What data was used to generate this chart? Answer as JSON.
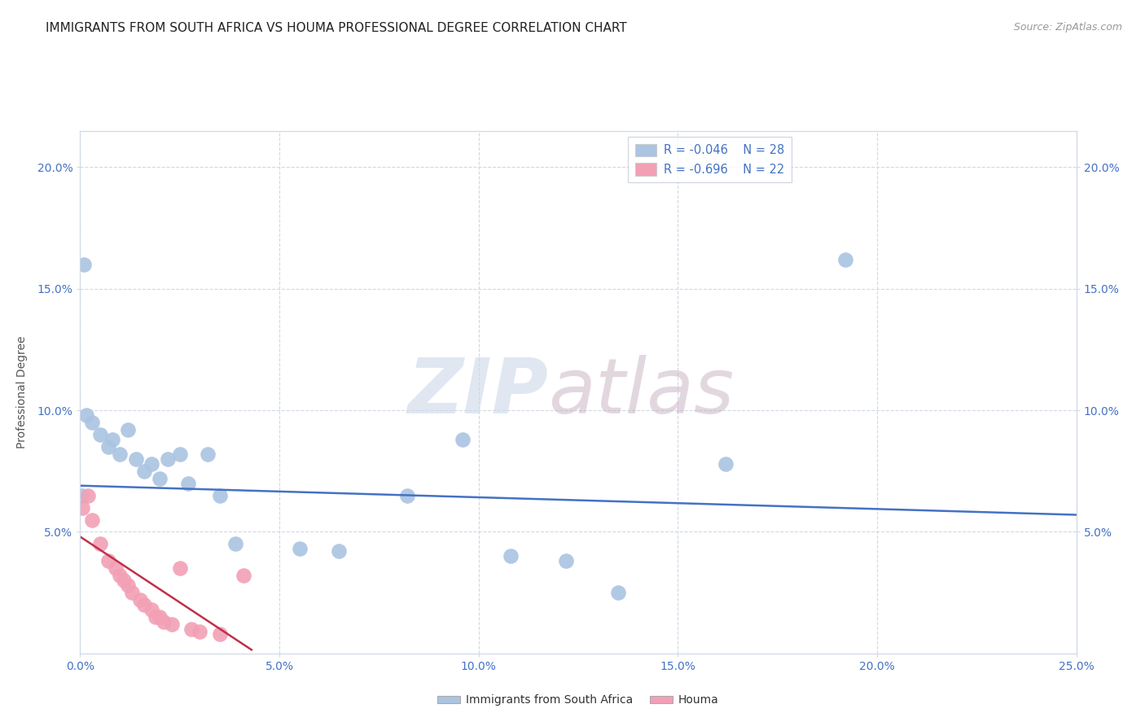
{
  "title": "IMMIGRANTS FROM SOUTH AFRICA VS HOUMA PROFESSIONAL DEGREE CORRELATION CHART",
  "source": "Source: ZipAtlas.com",
  "xlabel_vals": [
    0.0,
    5.0,
    10.0,
    15.0,
    20.0,
    25.0
  ],
  "ylabel": "Professional Degree",
  "ylabel_vals": [
    5.0,
    10.0,
    15.0,
    20.0
  ],
  "xlim": [
    0,
    25
  ],
  "ylim": [
    0,
    21.5
  ],
  "legend_blue_r": "R = -0.046",
  "legend_blue_n": "N = 28",
  "legend_pink_r": "R = -0.696",
  "legend_pink_n": "N = 22",
  "blue_scatter_x": [
    0.15,
    0.3,
    0.5,
    0.7,
    0.8,
    1.0,
    1.2,
    1.4,
    1.6,
    1.8,
    2.0,
    2.2,
    2.5,
    2.7,
    3.2,
    3.5,
    3.9,
    5.5,
    6.5,
    8.2,
    9.6,
    10.8,
    12.2,
    13.5,
    16.2,
    19.2,
    0.05,
    0.1
  ],
  "blue_scatter_y": [
    9.8,
    9.5,
    9.0,
    8.5,
    8.8,
    8.2,
    9.2,
    8.0,
    7.5,
    7.8,
    7.2,
    8.0,
    8.2,
    7.0,
    8.2,
    6.5,
    4.5,
    4.3,
    4.2,
    6.5,
    8.8,
    4.0,
    3.8,
    2.5,
    7.8,
    16.2,
    6.5,
    16.0
  ],
  "pink_scatter_x": [
    0.05,
    0.2,
    0.3,
    0.5,
    0.7,
    0.9,
    1.0,
    1.1,
    1.2,
    1.3,
    1.5,
    1.6,
    1.8,
    1.9,
    2.0,
    2.1,
    2.3,
    2.5,
    2.8,
    3.0,
    3.5,
    4.1
  ],
  "pink_scatter_y": [
    6.0,
    6.5,
    5.5,
    4.5,
    3.8,
    3.5,
    3.2,
    3.0,
    2.8,
    2.5,
    2.2,
    2.0,
    1.8,
    1.5,
    1.5,
    1.3,
    1.2,
    3.5,
    1.0,
    0.9,
    0.8,
    3.2
  ],
  "blue_line_x": [
    0,
    25
  ],
  "blue_line_y": [
    6.9,
    5.7
  ],
  "pink_line_x": [
    0,
    4.3
  ],
  "pink_line_y": [
    4.8,
    0.15
  ],
  "blue_color": "#aac4e2",
  "pink_color": "#f2a0b5",
  "blue_line_color": "#4472c4",
  "pink_line_color": "#c0304a",
  "grid_color": "#d0d8e8",
  "background_color": "#ffffff",
  "title_fontsize": 11,
  "axis_tick_fontsize": 10,
  "ylabel_fontsize": 10
}
